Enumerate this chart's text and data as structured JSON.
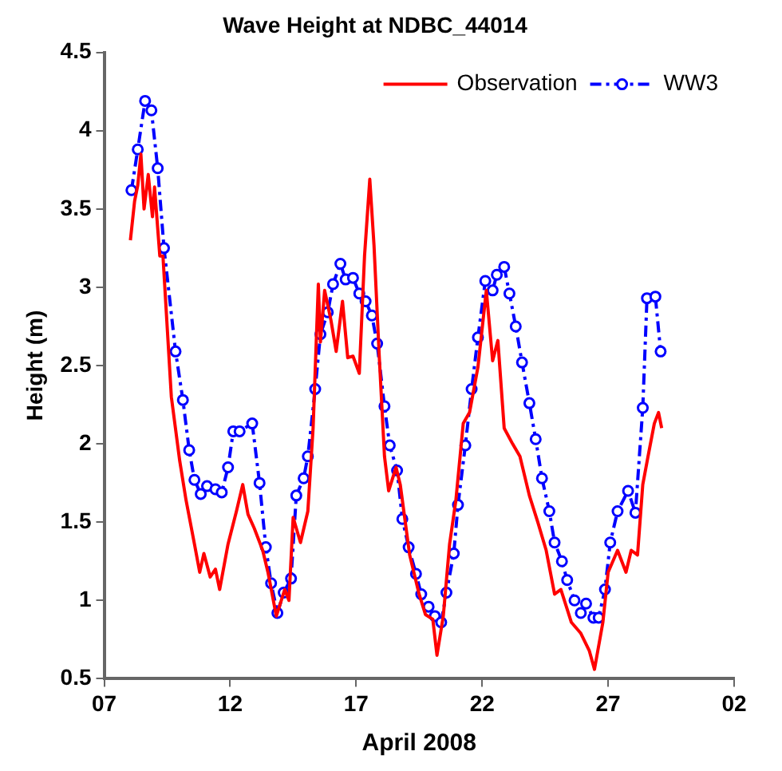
{
  "chart_data": {
    "type": "line",
    "title": "Wave Height at NDBC_44014",
    "xlabel": "April 2008",
    "ylabel": "Height (m)",
    "xlim": [
      "2008-04-07",
      "2008-05-02"
    ],
    "xticks": [
      {
        "value": "2008-04-07",
        "label": "07"
      },
      {
        "value": "2008-04-12",
        "label": "12"
      },
      {
        "value": "2008-04-17",
        "label": "17"
      },
      {
        "value": "2008-04-22",
        "label": "22"
      },
      {
        "value": "2008-04-27",
        "label": "27"
      },
      {
        "value": "2008-05-02",
        "label": "02"
      }
    ],
    "ylim": [
      0.5,
      4.5
    ],
    "yticks": [
      0.5,
      1,
      1.5,
      2,
      2.5,
      3,
      3.5,
      4,
      4.5
    ],
    "grid": false,
    "legend": "top right",
    "series": [
      {
        "name": "Observation",
        "color": "#ff0000",
        "marker": "none",
        "line_style": "solid",
        "x": [
          "2008-04-08T01:00",
          "2008-04-08T05:00",
          "2008-04-08T08:00",
          "2008-04-08T11:00",
          "2008-04-08T14:00",
          "2008-04-08T18:00",
          "2008-04-08T22:00",
          "2008-04-09T00:00",
          "2008-04-09T05:00",
          "2008-04-09T08:00",
          "2008-04-09T16:00",
          "2008-04-10T00:00",
          "2008-04-10T06:00",
          "2008-04-10T14:00",
          "2008-04-10T19:00",
          "2008-04-10T23:00",
          "2008-04-11T05:00",
          "2008-04-11T10:00",
          "2008-04-11T14:00",
          "2008-04-11T22:00",
          "2008-04-12T06:00",
          "2008-04-12T12:00",
          "2008-04-12T17:00",
          "2008-04-12T23:00",
          "2008-04-13T07:00",
          "2008-04-13T12:00",
          "2008-04-13T20:00",
          "2008-04-14T04:00",
          "2008-04-14T08:00",
          "2008-04-14T12:00",
          "2008-04-14T19:00",
          "2008-04-15T02:00",
          "2008-04-15T07:00",
          "2008-04-15T12:00",
          "2008-04-15T14:00",
          "2008-04-15T18:00",
          "2008-04-16T00:00",
          "2008-04-16T05:00",
          "2008-04-16T11:00",
          "2008-04-16T16:00",
          "2008-04-16T21:00",
          "2008-04-17T03:00",
          "2008-04-17T08:00",
          "2008-04-17T13:00",
          "2008-04-17T17:00",
          "2008-04-17T22:00",
          "2008-04-18T03:00",
          "2008-04-18T07:00",
          "2008-04-18T14:00",
          "2008-04-18T18:00",
          "2008-04-19T03:00",
          "2008-04-19T12:00",
          "2008-04-19T18:00",
          "2008-04-20T01:00",
          "2008-04-20T05:00",
          "2008-04-20T11:00",
          "2008-04-20T17:00",
          "2008-04-20T23:00",
          "2008-04-21T06:00",
          "2008-04-21T12:00",
          "2008-04-21T20:00",
          "2008-04-22T04:00",
          "2008-04-22T10:00",
          "2008-04-22T15:00",
          "2008-04-22T21:00",
          "2008-04-23T05:00",
          "2008-04-23T12:00",
          "2008-04-23T21:00",
          "2008-04-24T05:00",
          "2008-04-24T13:00",
          "2008-04-24T21:00",
          "2008-04-25T03:00",
          "2008-04-25T13:00",
          "2008-04-25T22:00",
          "2008-04-26T06:00",
          "2008-04-26T11:00",
          "2008-04-26T19:00",
          "2008-04-27T00:00",
          "2008-04-27T09:00",
          "2008-04-27T17:00",
          "2008-04-27T22:00",
          "2008-04-28T04:00",
          "2008-04-28T09:00",
          "2008-04-28T14:00",
          "2008-04-28T20:00",
          "2008-04-29T00:00",
          "2008-04-29T03:00"
        ],
        "values": [
          3.3,
          3.55,
          3.65,
          3.85,
          3.5,
          3.72,
          3.45,
          3.64,
          3.2,
          3.2,
          2.3,
          1.89,
          1.64,
          1.36,
          1.18,
          1.3,
          1.15,
          1.2,
          1.07,
          1.36,
          1.57,
          1.74,
          1.55,
          1.46,
          1.32,
          1.18,
          0.9,
          1.07,
          1.0,
          1.53,
          1.37,
          1.57,
          2.1,
          3.02,
          2.65,
          2.98,
          2.79,
          2.59,
          2.91,
          2.55,
          2.56,
          2.45,
          3.2,
          3.69,
          3.27,
          2.56,
          1.92,
          1.7,
          1.85,
          1.74,
          1.29,
          1.04,
          0.91,
          0.88,
          0.65,
          0.9,
          1.36,
          1.64,
          2.13,
          2.2,
          2.49,
          2.98,
          2.53,
          2.66,
          2.1,
          2.0,
          1.92,
          1.67,
          1.5,
          1.32,
          1.04,
          1.07,
          0.86,
          0.79,
          0.68,
          0.56,
          0.86,
          1.18,
          1.32,
          1.18,
          1.32,
          1.29,
          1.74,
          1.92,
          2.13,
          2.2,
          2.1
        ]
      },
      {
        "name": "WW3",
        "color": "#0000ff",
        "marker": "circle",
        "line_style": "dashed",
        "x": [
          "2008-04-08T02:00",
          "2008-04-08T08:00",
          "2008-04-08T15:00",
          "2008-04-08T21:00",
          "2008-04-09T03:00",
          "2008-04-09T09:00",
          "2008-04-09T20:00",
          "2008-04-10T03:00",
          "2008-04-10T09:00",
          "2008-04-10T14:00",
          "2008-04-10T20:00",
          "2008-04-11T02:00",
          "2008-04-11T10:00",
          "2008-04-11T16:00",
          "2008-04-11T22:00",
          "2008-04-12T03:00",
          "2008-04-12T09:00",
          "2008-04-12T21:00",
          "2008-04-13T04:00",
          "2008-04-13T10:00",
          "2008-04-13T15:00",
          "2008-04-13T21:00",
          "2008-04-14T03:00",
          "2008-04-14T10:00",
          "2008-04-14T15:00",
          "2008-04-14T22:00",
          "2008-04-15T02:00",
          "2008-04-15T09:00",
          "2008-04-15T14:00",
          "2008-04-15T21:00",
          "2008-04-16T02:00",
          "2008-04-16T09:00",
          "2008-04-16T14:00",
          "2008-04-16T21:00",
          "2008-04-17T03:00",
          "2008-04-17T09:00",
          "2008-04-17T15:00",
          "2008-04-17T20:00",
          "2008-04-18T03:00",
          "2008-04-18T08:00",
          "2008-04-18T15:00",
          "2008-04-18T20:00",
          "2008-04-19T02:00",
          "2008-04-19T09:00",
          "2008-04-19T14:00",
          "2008-04-19T21:00",
          "2008-04-20T03:00",
          "2008-04-20T09:00",
          "2008-04-20T14:00",
          "2008-04-20T21:00",
          "2008-04-21T01:00",
          "2008-04-21T08:00",
          "2008-04-21T14:00",
          "2008-04-21T20:00",
          "2008-04-22T03:00",
          "2008-04-22T10:00",
          "2008-04-22T14:00",
          "2008-04-22T21:00",
          "2008-04-23T02:00",
          "2008-04-23T08:00",
          "2008-04-23T14:00",
          "2008-04-23T21:00",
          "2008-04-24T03:00",
          "2008-04-24T09:00",
          "2008-04-24T16:00",
          "2008-04-24T21:00",
          "2008-04-25T04:00",
          "2008-04-25T09:00",
          "2008-04-25T16:00",
          "2008-04-25T22:00",
          "2008-04-26T03:00",
          "2008-04-26T10:00",
          "2008-04-26T15:00",
          "2008-04-26T21:00",
          "2008-04-27T02:00",
          "2008-04-27T09:00",
          "2008-04-27T19:00",
          "2008-04-28T02:00",
          "2008-04-28T09:00",
          "2008-04-28T13:00",
          "2008-04-28T21:00",
          "2008-04-29T02:00"
        ],
        "values": [
          3.62,
          3.88,
          4.19,
          4.13,
          3.76,
          3.25,
          2.59,
          2.28,
          1.96,
          1.77,
          1.68,
          1.73,
          1.71,
          1.69,
          1.85,
          2.08,
          2.08,
          2.13,
          1.75,
          1.34,
          1.11,
          0.92,
          1.05,
          1.14,
          1.67,
          1.78,
          1.92,
          2.35,
          2.7,
          2.84,
          3.02,
          3.15,
          3.05,
          3.06,
          2.96,
          2.91,
          2.82,
          2.64,
          2.24,
          1.99,
          1.83,
          1.52,
          1.34,
          1.17,
          1.04,
          0.96,
          0.9,
          0.86,
          1.05,
          1.3,
          1.61,
          1.99,
          2.35,
          2.68,
          3.04,
          2.98,
          3.08,
          3.13,
          2.96,
          2.75,
          2.52,
          2.26,
          2.03,
          1.78,
          1.57,
          1.37,
          1.25,
          1.13,
          1.0,
          0.92,
          0.98,
          0.89,
          0.89,
          1.07,
          1.37,
          1.57,
          1.7,
          1.56,
          2.23,
          2.93,
          2.94,
          2.59
        ]
      }
    ]
  }
}
